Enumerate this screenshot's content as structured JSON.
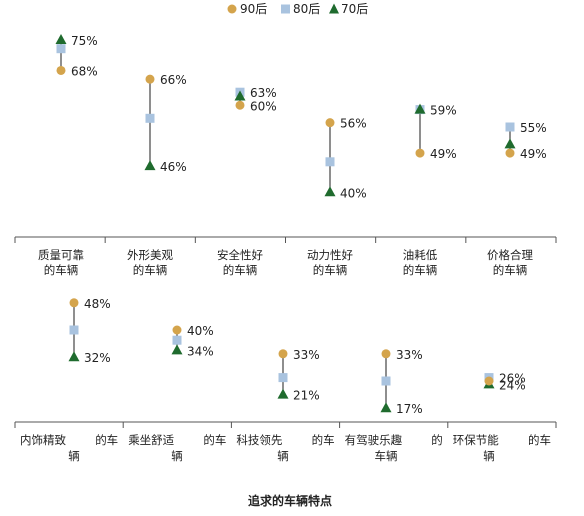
{
  "colors": {
    "s90": "#d4a44c",
    "s80": "#a9c3df",
    "s70": "#1f6b2e",
    "line": "#444444",
    "axis": "#555555"
  },
  "chart_data": {
    "type": "scatter",
    "title": "追求的车辆特点",
    "legend": {
      "placement": "top-center"
    },
    "series": [
      {
        "name": "90后",
        "marker": "circle"
      },
      {
        "name": "80后",
        "marker": "square"
      },
      {
        "name": "70后",
        "marker": "triangle"
      }
    ],
    "panels": [
      {
        "range": [
          35,
          75
        ],
        "items": [
          {
            "label": [
              "质量可靠",
              "的车辆"
            ],
            "v90": 68,
            "v80": 73,
            "v70": 75,
            "labels": [
              {
                "s": "v70",
                "text": "75%"
              },
              {
                "s": "v90",
                "text": "68%"
              }
            ]
          },
          {
            "label": [
              "外形美观",
              "的车辆"
            ],
            "v90": 66,
            "v80": 57,
            "v70": 46,
            "labels": [
              {
                "s": "v90",
                "text": "66%"
              },
              {
                "s": "v70",
                "text": "46%"
              }
            ]
          },
          {
            "label": [
              "安全性好",
              "的车辆"
            ],
            "v90": 60,
            "v80": 63,
            "v70": 62,
            "labels": [
              {
                "s": "v80",
                "text": "63%"
              },
              {
                "s": "v90",
                "text": "60%"
              }
            ]
          },
          {
            "label": [
              "动力性好",
              "的车辆"
            ],
            "v90": 56,
            "v80": 47,
            "v70": 40,
            "labels": [
              {
                "s": "v90",
                "text": "56%"
              },
              {
                "s": "v70",
                "text": "40%"
              }
            ]
          },
          {
            "label": [
              "油耗低",
              "的车辆"
            ],
            "v90": 49,
            "v80": 59,
            "v70": 59,
            "labels": [
              {
                "s": "v80",
                "text": "59%"
              },
              {
                "s": "v90",
                "text": "49%"
              }
            ]
          },
          {
            "label": [
              "价格合理",
              "的车辆"
            ],
            "v90": 49,
            "v80": 55,
            "v70": 51,
            "labels": [
              {
                "s": "v80",
                "text": "55%"
              },
              {
                "s": "v90",
                "text": "49%"
              }
            ]
          }
        ]
      },
      {
        "range": [
          15,
          50
        ],
        "items": [
          {
            "label": [
              "内饰精致",
              "的车",
              "辆"
            ],
            "v90": 48,
            "v80": 40,
            "v70": 32,
            "labels": [
              {
                "s": "v90",
                "text": "48%"
              },
              {
                "s": "v70",
                "text": "32%"
              }
            ]
          },
          {
            "label": [
              "乘坐舒适",
              "的车",
              "辆"
            ],
            "v90": 40,
            "v80": 37,
            "v70": 34,
            "labels": [
              {
                "s": "v90",
                "text": "40%"
              },
              {
                "s": "v70",
                "text": "34%"
              }
            ]
          },
          {
            "label": [
              "科技领先",
              "的车",
              "辆"
            ],
            "v90": 33,
            "v80": 26,
            "v70": 21,
            "labels": [
              {
                "s": "v90",
                "text": "33%"
              },
              {
                "s": "v70",
                "text": "21%"
              }
            ]
          },
          {
            "label": [
              "有驾驶乐趣",
              "的",
              "车辆"
            ],
            "v90": 33,
            "v80": 25,
            "v70": 17,
            "labels": [
              {
                "s": "v90",
                "text": "33%"
              },
              {
                "s": "v70",
                "text": "17%"
              }
            ]
          },
          {
            "label": [
              "环保节能",
              "的车",
              "辆"
            ],
            "v90": 25,
            "v80": 26,
            "v70": 24,
            "labels": [
              {
                "s": "v80",
                "text": "26%"
              },
              {
                "s": "v70",
                "text": "24%"
              }
            ]
          }
        ]
      }
    ]
  }
}
